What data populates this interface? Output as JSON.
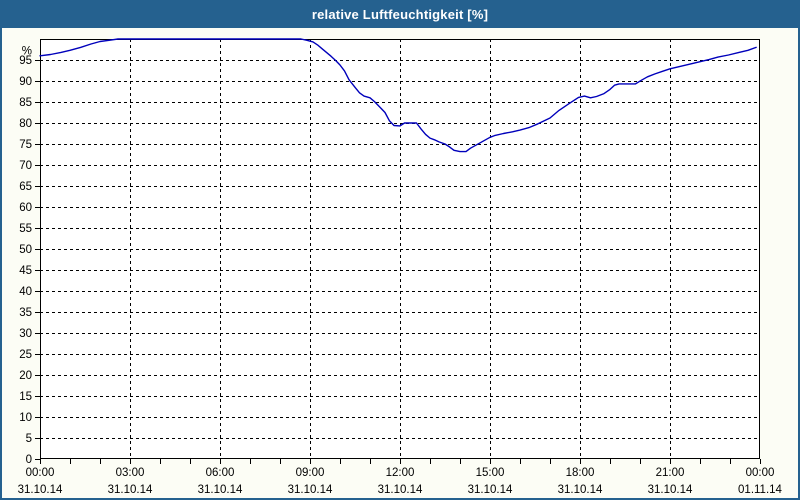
{
  "window": {
    "title": "relative Luftfeuchtigkeit [%]",
    "title_bar_color": "#25618F",
    "title_text_color": "#FFFFFF",
    "border_color": "#25618F",
    "background_color": "#FCFDF5",
    "plot_background_color": "#FFFFFF"
  },
  "chart_data": {
    "type": "line",
    "title": "relative Luftfeuchtigkeit [%]",
    "ylabel": "%",
    "xlabel": "",
    "ylim": [
      0,
      100
    ],
    "yticks": [
      0,
      5,
      10,
      15,
      20,
      25,
      30,
      35,
      40,
      45,
      50,
      55,
      60,
      65,
      70,
      75,
      80,
      85,
      90,
      95
    ],
    "percent_label": "%",
    "x_range_hours": [
      0,
      24
    ],
    "x_minor_tick_every_hours": 1,
    "x_major_ticks": [
      {
        "hour": 0,
        "time": "00:00",
        "date": "31.10.14"
      },
      {
        "hour": 3,
        "time": "03:00",
        "date": "31.10.14"
      },
      {
        "hour": 6,
        "time": "06:00",
        "date": "31.10.14"
      },
      {
        "hour": 9,
        "time": "09:00",
        "date": "31.10.14"
      },
      {
        "hour": 12,
        "time": "12:00",
        "date": "31.10.14"
      },
      {
        "hour": 15,
        "time": "15:00",
        "date": "31.10.14"
      },
      {
        "hour": 18,
        "time": "18:00",
        "date": "31.10.14"
      },
      {
        "hour": 21,
        "time": "21:00",
        "date": "31.10.14"
      },
      {
        "hour": 24,
        "time": "00:00",
        "date": "01.11.14"
      }
    ],
    "grid": "dashed",
    "grid_color": "#000000",
    "axis_color": "#000000",
    "legend": "none",
    "line_color": "#0000BB",
    "series": [
      {
        "name": "relative Luftfeuchtigkeit",
        "points": [
          [
            0,
            96.0
          ],
          [
            0.35,
            96.3
          ],
          [
            0.7,
            96.8
          ],
          [
            1.0,
            97.3
          ],
          [
            1.35,
            98.0
          ],
          [
            1.7,
            98.8
          ],
          [
            2.0,
            99.4
          ],
          [
            2.3,
            99.7
          ],
          [
            2.6,
            100
          ],
          [
            8.7,
            100
          ],
          [
            8.9,
            99.7
          ],
          [
            9.1,
            99.3
          ],
          [
            9.25,
            98.6
          ],
          [
            9.4,
            97.7
          ],
          [
            9.55,
            96.8
          ],
          [
            9.7,
            95.9
          ],
          [
            9.85,
            94.9
          ],
          [
            10.0,
            93.8
          ],
          [
            10.15,
            92.4
          ],
          [
            10.3,
            90.3
          ],
          [
            10.5,
            88.5
          ],
          [
            10.65,
            87.2
          ],
          [
            10.8,
            86.4
          ],
          [
            11.0,
            86.0
          ],
          [
            11.15,
            85.1
          ],
          [
            11.3,
            84.0
          ],
          [
            11.5,
            82.5
          ],
          [
            11.65,
            80.5
          ],
          [
            11.8,
            79.4
          ],
          [
            12.0,
            79.3
          ],
          [
            12.15,
            80.0
          ],
          [
            12.55,
            80.0
          ],
          [
            12.7,
            78.6
          ],
          [
            12.85,
            77.3
          ],
          [
            13.0,
            76.4
          ],
          [
            13.15,
            76.0
          ],
          [
            13.3,
            75.5
          ],
          [
            13.5,
            75.0
          ],
          [
            13.65,
            74.3
          ],
          [
            13.8,
            73.5
          ],
          [
            14.0,
            73.2
          ],
          [
            14.2,
            73.2
          ],
          [
            14.35,
            74.0
          ],
          [
            14.5,
            74.6
          ],
          [
            14.65,
            75.2
          ],
          [
            15.0,
            76.6
          ],
          [
            15.15,
            77.0
          ],
          [
            15.45,
            77.5
          ],
          [
            15.75,
            77.9
          ],
          [
            16.0,
            78.3
          ],
          [
            16.3,
            78.9
          ],
          [
            16.6,
            79.8
          ],
          [
            17.0,
            81.2
          ],
          [
            17.3,
            83.0
          ],
          [
            17.65,
            84.7
          ],
          [
            17.95,
            86.1
          ],
          [
            18.15,
            86.4
          ],
          [
            18.35,
            86.0
          ],
          [
            18.55,
            86.3
          ],
          [
            18.8,
            87.0
          ],
          [
            19.0,
            88.0
          ],
          [
            19.15,
            89.0
          ],
          [
            19.3,
            89.3
          ],
          [
            19.85,
            89.3
          ],
          [
            20.05,
            90.2
          ],
          [
            20.25,
            91.0
          ],
          [
            20.5,
            91.7
          ],
          [
            20.75,
            92.3
          ],
          [
            21.0,
            92.9
          ],
          [
            21.3,
            93.4
          ],
          [
            21.6,
            93.9
          ],
          [
            21.95,
            94.5
          ],
          [
            22.3,
            95.1
          ],
          [
            22.6,
            95.7
          ],
          [
            22.95,
            96.2
          ],
          [
            23.3,
            96.8
          ],
          [
            23.6,
            97.3
          ],
          [
            23.87,
            98.0
          ]
        ]
      }
    ]
  }
}
